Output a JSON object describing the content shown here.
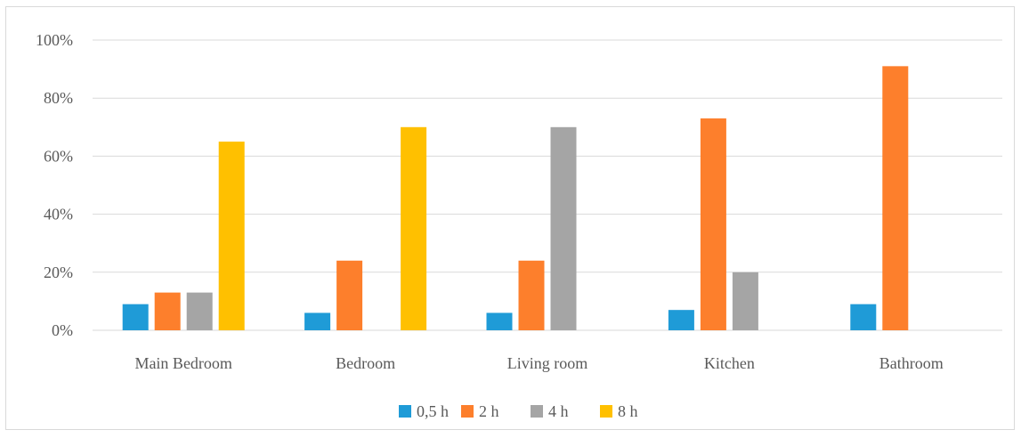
{
  "chart_data": {
    "type": "bar",
    "title": "",
    "xlabel": "",
    "ylabel": "",
    "categories": [
      "Main Bedroom",
      "Bedroom",
      "Living room",
      "Kitchen",
      "Bathroom"
    ],
    "series": [
      {
        "name": "0,5 h",
        "color": "#1f9bd7",
        "values": [
          9,
          6,
          6,
          7,
          9
        ]
      },
      {
        "name": "2 h",
        "color": "#fd7f2c",
        "values": [
          13,
          24,
          24,
          73,
          91
        ]
      },
      {
        "name": "4 h",
        "color": "#a5a5a5",
        "values": [
          13,
          0,
          70,
          20,
          0
        ]
      },
      {
        "name": "8 h",
        "color": "#ffc000",
        "values": [
          65,
          70,
          0,
          0,
          0
        ]
      }
    ],
    "ylim": [
      0,
      100
    ],
    "yticks": [
      0,
      20,
      40,
      60,
      80,
      100
    ],
    "ytick_labels": [
      "0%",
      "20%",
      "40%",
      "60%",
      "80%",
      "100%"
    ],
    "grid": true,
    "legend_position": "bottom"
  }
}
